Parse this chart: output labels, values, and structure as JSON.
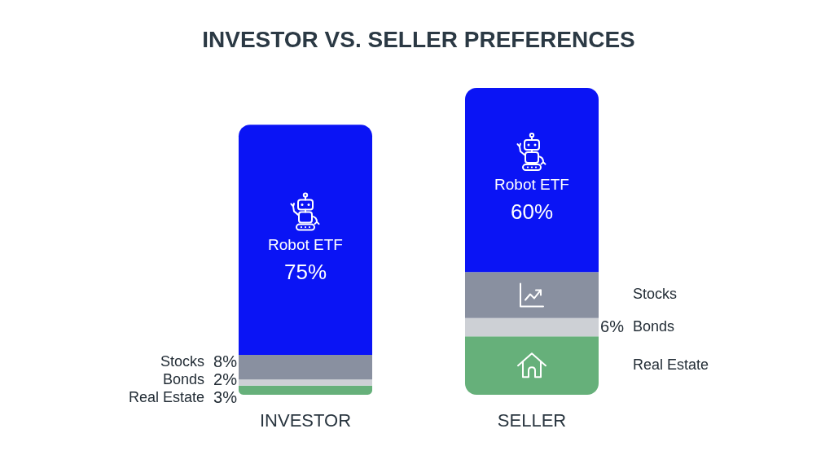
{
  "chart_data": {
    "type": "bar",
    "title": "INVESTOR VS. SELLER PREFERENCES",
    "categories": [
      "INVESTOR",
      "SELLER"
    ],
    "stacked": true,
    "series": [
      {
        "name": "Real Estate",
        "color": "#66b07a",
        "values": [
          3,
          19
        ],
        "value_labels": [
          "3%",
          null
        ]
      },
      {
        "name": "Bonds",
        "color": "#cdd0d5",
        "values": [
          2,
          6
        ],
        "value_labels": [
          "2%",
          "6%"
        ]
      },
      {
        "name": "Stocks",
        "color": "#8990a0",
        "values": [
          8,
          15
        ],
        "value_labels": [
          "8%",
          null
        ]
      },
      {
        "name": "Robot ETF",
        "color": "#0a14f5",
        "values": [
          75,
          60
        ],
        "value_labels": [
          "75%",
          "60%"
        ]
      }
    ]
  }
}
